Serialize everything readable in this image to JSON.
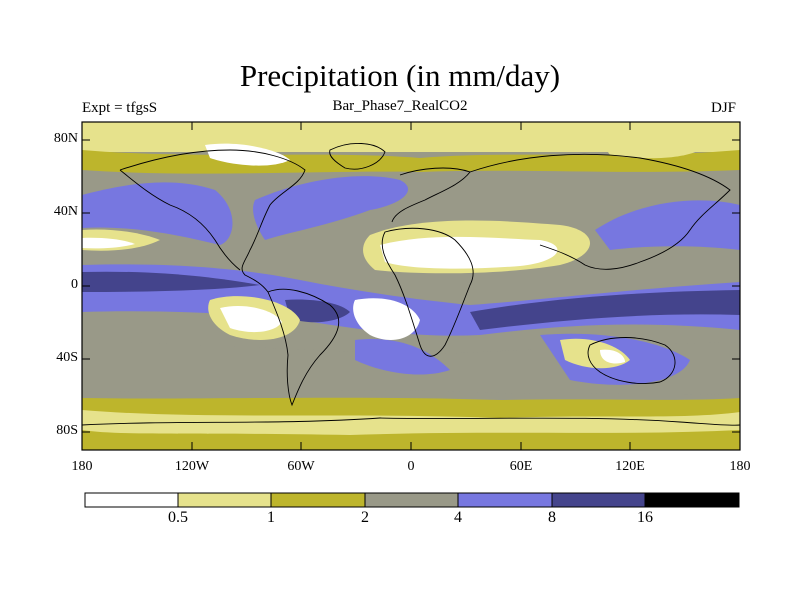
{
  "header": {
    "title": "Precipitation (in mm/day)",
    "subtitle": "Bar_Phase7_RealCO2",
    "left_label": "Expt = tfgsS",
    "right_label": "DJF"
  },
  "axes": {
    "y_ticks": [
      "80N",
      "40N",
      "0",
      "40S",
      "80S"
    ],
    "x_ticks": [
      "180",
      "120W",
      "60W",
      "0",
      "60E",
      "120E",
      "180"
    ]
  },
  "colorbar": {
    "colors": [
      "#ffffff",
      "#e6e28c",
      "#bdb52c",
      "#999988",
      "#7777e0",
      "#44448c",
      "#000000"
    ],
    "labels": [
      "0.5",
      "1",
      "2",
      "4",
      "8",
      "16"
    ]
  },
  "map": {
    "projection": "cylindrical-equidistant",
    "lat_range": [
      -90,
      90
    ],
    "lon_range": [
      -180,
      180
    ]
  }
}
